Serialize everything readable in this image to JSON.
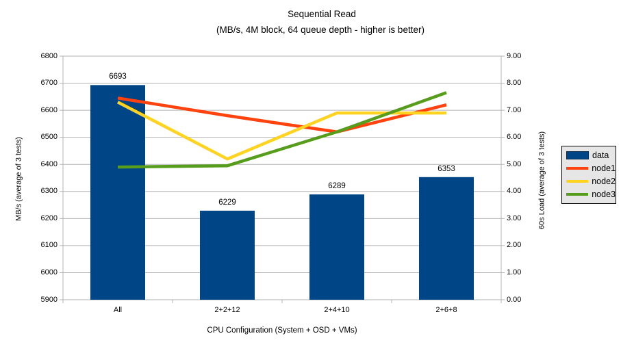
{
  "title": "Sequential Read",
  "subtitle": "(MB/s, 4M block, 64 queue depth - higher is better)",
  "chart_data": {
    "type": "combo-bar-line",
    "title": "Sequential Read",
    "subtitle": "(MB/s, 4M block, 64 queue depth - higher is better)",
    "categories": [
      "All",
      "2+2+12",
      "2+4+10",
      "2+6+8"
    ],
    "series": [
      {
        "name": "data",
        "type": "bar",
        "axis": "left",
        "color": "#004586",
        "values": [
          6693,
          6229,
          6289,
          6353
        ],
        "data_labels": [
          "6693",
          "6229",
          "6289",
          "6353"
        ]
      },
      {
        "name": "node1",
        "type": "line",
        "axis": "right",
        "color": "#FF420E",
        "values": [
          7.45,
          6.8,
          6.2,
          7.2
        ]
      },
      {
        "name": "node2",
        "type": "line",
        "axis": "right",
        "color": "#FFD320",
        "values": [
          7.3,
          5.2,
          6.9,
          6.9
        ]
      },
      {
        "name": "node3",
        "type": "line",
        "axis": "right",
        "color": "#579D1C",
        "values": [
          4.9,
          4.95,
          6.2,
          7.65
        ]
      }
    ],
    "left_axis": {
      "label": "MB/s (average of 3 tests)",
      "min": 5900,
      "max": 6800,
      "step": 100,
      "decimals": 0
    },
    "right_axis": {
      "label": "60s Load (average of 3 tests)",
      "min": 0,
      "max": 9,
      "step": 1,
      "decimals": 2
    },
    "x_axis": {
      "label": "CPU Configuration (System + OSD + VMs)"
    },
    "legend": {
      "position": "right",
      "entries": [
        "data",
        "node1",
        "node2",
        "node3"
      ]
    },
    "grid": "horizontal-major",
    "colors": {
      "background": "#FFFFFF",
      "grid": "#B3B3B3",
      "axis": "#B3B3B3",
      "text": "#000000",
      "legend_background": "#E6E6E6",
      "legend_border": "#000000"
    }
  }
}
